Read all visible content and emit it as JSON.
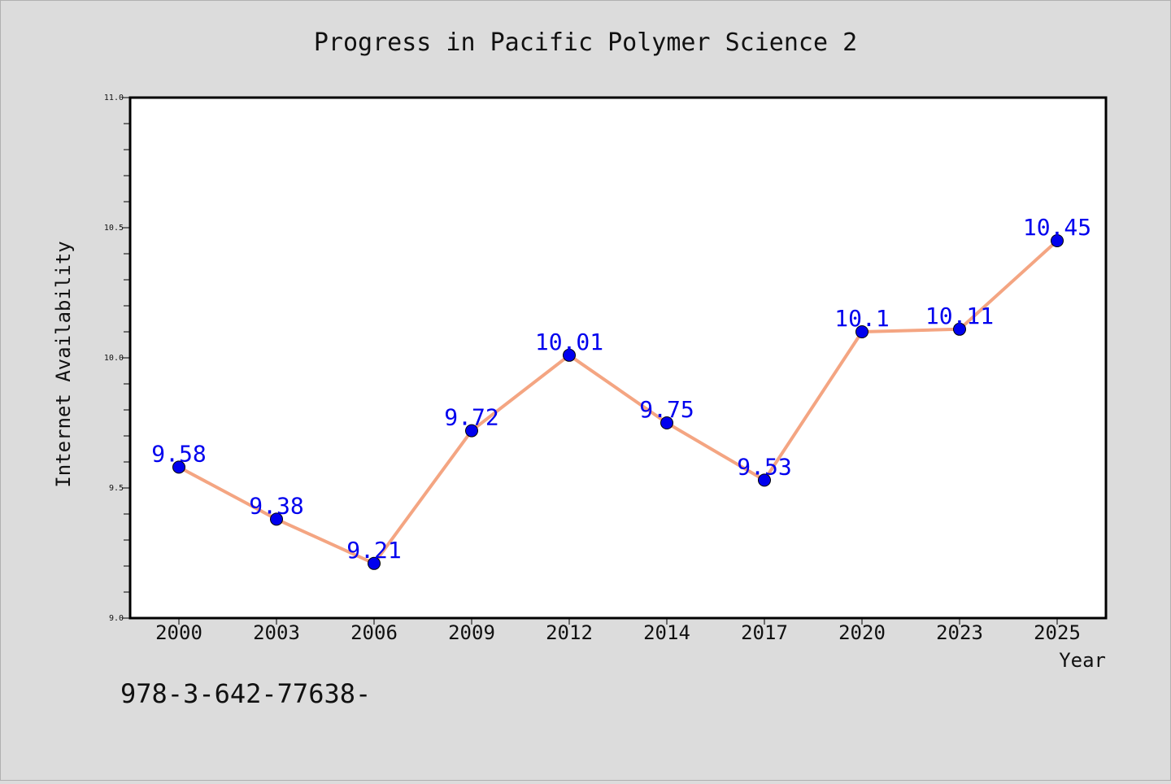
{
  "chart_data": {
    "type": "line",
    "title": "Progress in Pacific Polymer Science 2",
    "xlabel": "Year",
    "ylabel": "Internet Availability",
    "categories": [
      "2000",
      "2003",
      "2006",
      "2009",
      "2012",
      "2014",
      "2017",
      "2020",
      "2023",
      "2025"
    ],
    "series": [
      {
        "values": [
          9.58,
          9.38,
          9.21,
          9.72,
          10.01,
          9.75,
          9.53,
          10.1,
          10.11,
          10.45
        ],
        "data_labels": [
          "9.58",
          "9.38",
          "9.21",
          "9.72",
          "10.01",
          "9.75",
          "9.53",
          "10.1",
          "10.11",
          "10.45"
        ]
      }
    ],
    "ylim": [
      9.0,
      11.0
    ],
    "yticks": [
      "9.0",
      "9.5",
      "10.0",
      "10.5",
      "11.0"
    ],
    "grid": false,
    "footnote": "978-3-642-77638-",
    "colors": {
      "line": "#f4a582",
      "marker": "#0000ee",
      "data_label": "#0000ee",
      "background": "#dcdcdc",
      "plot_background": "#ffffff"
    }
  }
}
